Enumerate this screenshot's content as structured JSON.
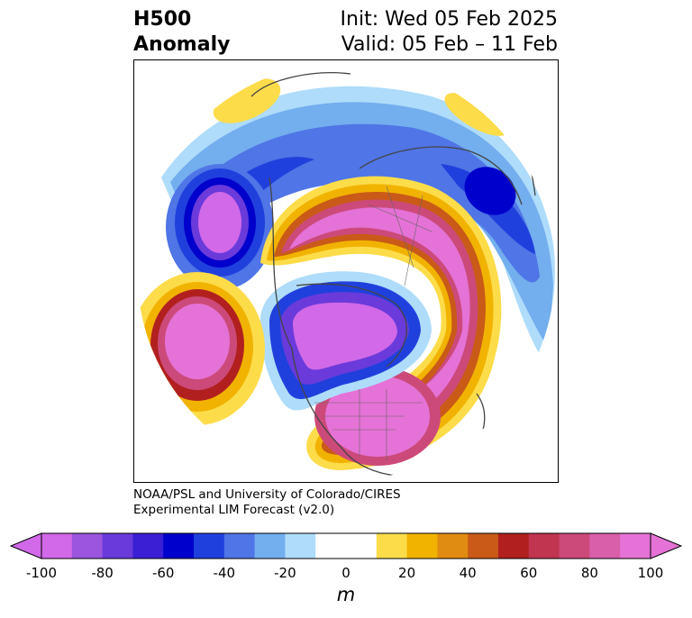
{
  "title": {
    "left_line1": "H500",
    "left_line2": "Anomaly",
    "right_line1": "Init: Wed 05 Feb 2025",
    "right_line2": "Valid: 05 Feb – 11 Feb"
  },
  "credit": {
    "line1": "NOAA/PSL and University of Colorado/CIRES",
    "line2": "Experimental LIM Forecast (v2.0)"
  },
  "colorbar": {
    "unit_label": "m",
    "ticks": [
      "-100",
      "-80",
      "-60",
      "-40",
      "-20",
      "0",
      "20",
      "40",
      "60",
      "80",
      "100"
    ],
    "colors": [
      "#d169e8",
      "#9b55df",
      "#6a3adb",
      "#3a1fd4",
      "#0000cc",
      "#2040dd",
      "#4f75e6",
      "#73aeee",
      "#aedcfa",
      "#ffffff",
      "#ffffff",
      "#fddc4a",
      "#f1b300",
      "#e08b12",
      "#c95a18",
      "#b1201f",
      "#c13550",
      "#cc4a7a",
      "#d95fab",
      "#e572d6"
    ],
    "extend_low_color": "#d169e8",
    "extend_high_color": "#e572d6"
  },
  "map": {
    "projection": "north polar stereographic",
    "field": "500 hPa geopotential height anomaly"
  }
}
